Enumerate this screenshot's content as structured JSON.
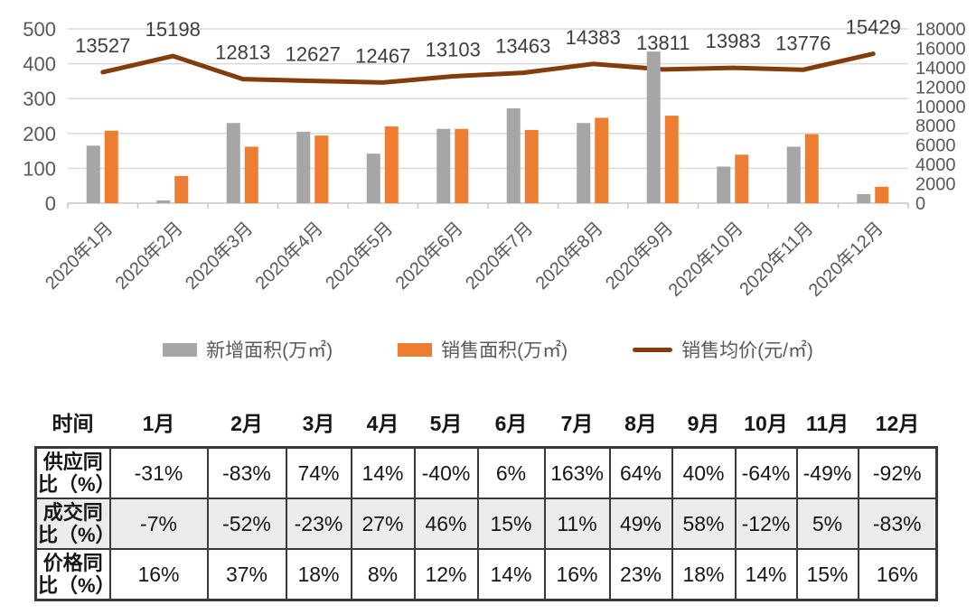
{
  "chart_data": {
    "type": "combo",
    "title": "",
    "categories": [
      "2020年1月",
      "2020年2月",
      "2020年3月",
      "2020年4月",
      "2020年5月",
      "2020年6月",
      "2020年7月",
      "2020年8月",
      "2020年9月",
      "2020年10月",
      "2020年11月",
      "2020年12月"
    ],
    "series": [
      {
        "name": "新增面积(万㎡)",
        "type": "bar",
        "axis": "left",
        "color": "#a6a6a6",
        "values": [
          165,
          8,
          230,
          205,
          142,
          213,
          272,
          230,
          435,
          105,
          162,
          26
        ]
      },
      {
        "name": "销售面积(万㎡)",
        "type": "bar",
        "axis": "left",
        "color": "#ed7d31",
        "values": [
          208,
          78,
          162,
          194,
          220,
          213,
          210,
          245,
          251,
          139,
          198,
          47
        ]
      },
      {
        "name": "销售均价(元/㎡)",
        "type": "line",
        "axis": "right",
        "color": "#843c0c",
        "data_labels": true,
        "values": [
          13527,
          15198,
          12813,
          12627,
          12467,
          13103,
          13463,
          14383,
          13811,
          13983,
          13776,
          15429
        ]
      }
    ],
    "left_axis": {
      "min": 0,
      "max": 500,
      "step": 100,
      "ticks": [
        "0",
        "100",
        "200",
        "300",
        "400",
        "500"
      ]
    },
    "right_axis": {
      "min": 0,
      "max": 18000,
      "step": 2000,
      "ticks": [
        "0",
        "2000",
        "4000",
        "6000",
        "8000",
        "10000",
        "12000",
        "14000",
        "16000",
        "18000"
      ]
    },
    "grid": true,
    "legend_position": "bottom"
  },
  "table": {
    "corner_label": "时间",
    "columns": [
      "1月",
      "2月",
      "3月",
      "4月",
      "5月",
      "6月",
      "7月",
      "8月",
      "9月",
      "10月",
      "11月",
      "12月"
    ],
    "rows": [
      {
        "label": "供应同比（%）",
        "values": [
          "-31%",
          "-83%",
          "74%",
          "14%",
          "-40%",
          "6%",
          "163%",
          "64%",
          "40%",
          "-64%",
          "-49%",
          "-92%"
        ]
      },
      {
        "label": "成交同比（%）",
        "values": [
          "-7%",
          "-52%",
          "-23%",
          "27%",
          "46%",
          "15%",
          "11%",
          "49%",
          "58%",
          "-12%",
          "5%",
          "-83%"
        ]
      },
      {
        "label": "价格同比（%）",
        "values": [
          "16%",
          "37%",
          "18%",
          "8%",
          "12%",
          "14%",
          "16%",
          "23%",
          "18%",
          "14%",
          "15%",
          "16%"
        ]
      }
    ]
  },
  "colors": {
    "bar_new_area": "#a6a6a6",
    "bar_sales_area": "#ed7d31",
    "price_line": "#843c0c",
    "gridline": "#d9d9d9",
    "axis_line": "#c6c6c6",
    "axis_text": "#595959",
    "data_label_text": "#3d3d3d",
    "table_border": "#3a3a3a",
    "table_stripe_bg": "#ececec",
    "background": "#ffffff"
  }
}
